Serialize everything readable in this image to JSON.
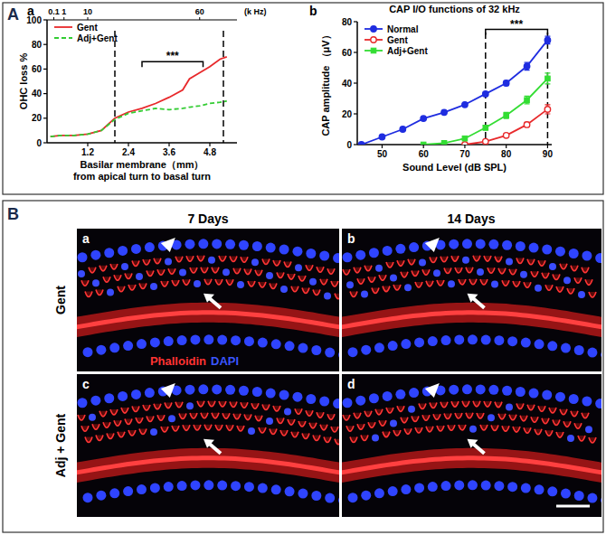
{
  "chart_data": [
    {
      "type": "line",
      "panel": "a",
      "ylabel": "OHC loss %",
      "xlabel": [
        "Basilar membrane（mm）",
        "from apical turn to basal turn"
      ],
      "x": [
        0.1,
        0.4,
        0.8,
        1.2,
        1.6,
        2.0,
        2.4,
        2.8,
        3.2,
        3.6,
        4.0,
        4.2,
        4.5,
        4.8,
        5.1,
        5.3
      ],
      "series": [
        {
          "name": "Gent",
          "color": "#e8292b",
          "line_style": "solid",
          "values": [
            5,
            6,
            6,
            7,
            10,
            20,
            25,
            28,
            32,
            37,
            43,
            52,
            57,
            62,
            68,
            70
          ]
        },
        {
          "name": "Adj+Gent",
          "color": "#33cc33",
          "line_style": "dashed",
          "values": [
            5,
            6,
            6,
            7,
            10,
            19,
            24,
            26,
            28,
            27,
            28,
            29,
            30,
            32,
            33,
            34
          ]
        }
      ],
      "xlim": [
        0,
        5.6
      ],
      "ylim": [
        0,
        100
      ],
      "xticks": [
        1.2,
        2.4,
        3.6,
        4.8
      ],
      "yticks": [
        0,
        20,
        40,
        60,
        80,
        100
      ],
      "x2ticks": [
        {
          "value": 0.2,
          "label": "0.1"
        },
        {
          "value": 0.5,
          "label": "1"
        },
        {
          "value": 1.2,
          "label": "10"
        },
        {
          "value": 4.5,
          "label": "60"
        }
      ],
      "x2label": "(k Hz)",
      "reference_lines": [
        2.0,
        5.2
      ],
      "annotations": [
        {
          "text": "***",
          "x": [
            2.8,
            4.6
          ],
          "y": 66
        }
      ],
      "legend": "upper left"
    },
    {
      "type": "line",
      "panel": "b",
      "title": "CAP I/O functions of 32 kHz",
      "xlabel": "Sound Level (dB SPL)",
      "ylabel": "CAP amplitude （μV）",
      "x": [
        45,
        50,
        55,
        60,
        65,
        70,
        75,
        80,
        85,
        90
      ],
      "series": [
        {
          "name": "Normal",
          "color": "#1f2de0",
          "marker": "circle",
          "values": [
            0,
            5,
            10,
            17,
            21,
            26,
            33,
            40,
            51,
            68
          ],
          "errors": [
            0,
            0,
            0,
            0,
            0,
            0,
            1,
            1.5,
            2.5,
            2.5
          ]
        },
        {
          "name": "Gent",
          "color": "#e8292b",
          "marker": "open-circle",
          "values": [
            null,
            null,
            null,
            null,
            null,
            0,
            2,
            6,
            13,
            23
          ],
          "errors": [
            null,
            null,
            null,
            null,
            null,
            0,
            0.5,
            1,
            1.5,
            3
          ]
        },
        {
          "name": "Adj+Gent",
          "color": "#33dd33",
          "marker": "square",
          "values": [
            null,
            null,
            null,
            0,
            1,
            4,
            11,
            19,
            29,
            43
          ],
          "errors": [
            null,
            null,
            null,
            0,
            0.5,
            1,
            1.5,
            2,
            2.5,
            3.5
          ]
        }
      ],
      "xlim": [
        44,
        91
      ],
      "ylim": [
        0,
        80
      ],
      "xticks": [
        50,
        60,
        70,
        80,
        90
      ],
      "yticks": [
        0,
        20,
        40,
        60,
        80
      ],
      "reference_lines": [
        75,
        90
      ],
      "annotations": [
        {
          "text": "***",
          "x": [
            75,
            90
          ],
          "y": 75
        }
      ],
      "legend": "upper left"
    }
  ],
  "figure": {
    "panel_labels": [
      "A",
      "B"
    ],
    "columns": [
      "7 Days",
      "14 Days"
    ],
    "rows": [
      "Gent",
      "Adj + Gent"
    ],
    "image_labels": [
      "a",
      "b",
      "c",
      "d"
    ],
    "stains": [
      {
        "text": "Phalloidin",
        "color": "#ff3333"
      },
      {
        "text": "DAPI",
        "color": "#3a55ff"
      }
    ]
  }
}
